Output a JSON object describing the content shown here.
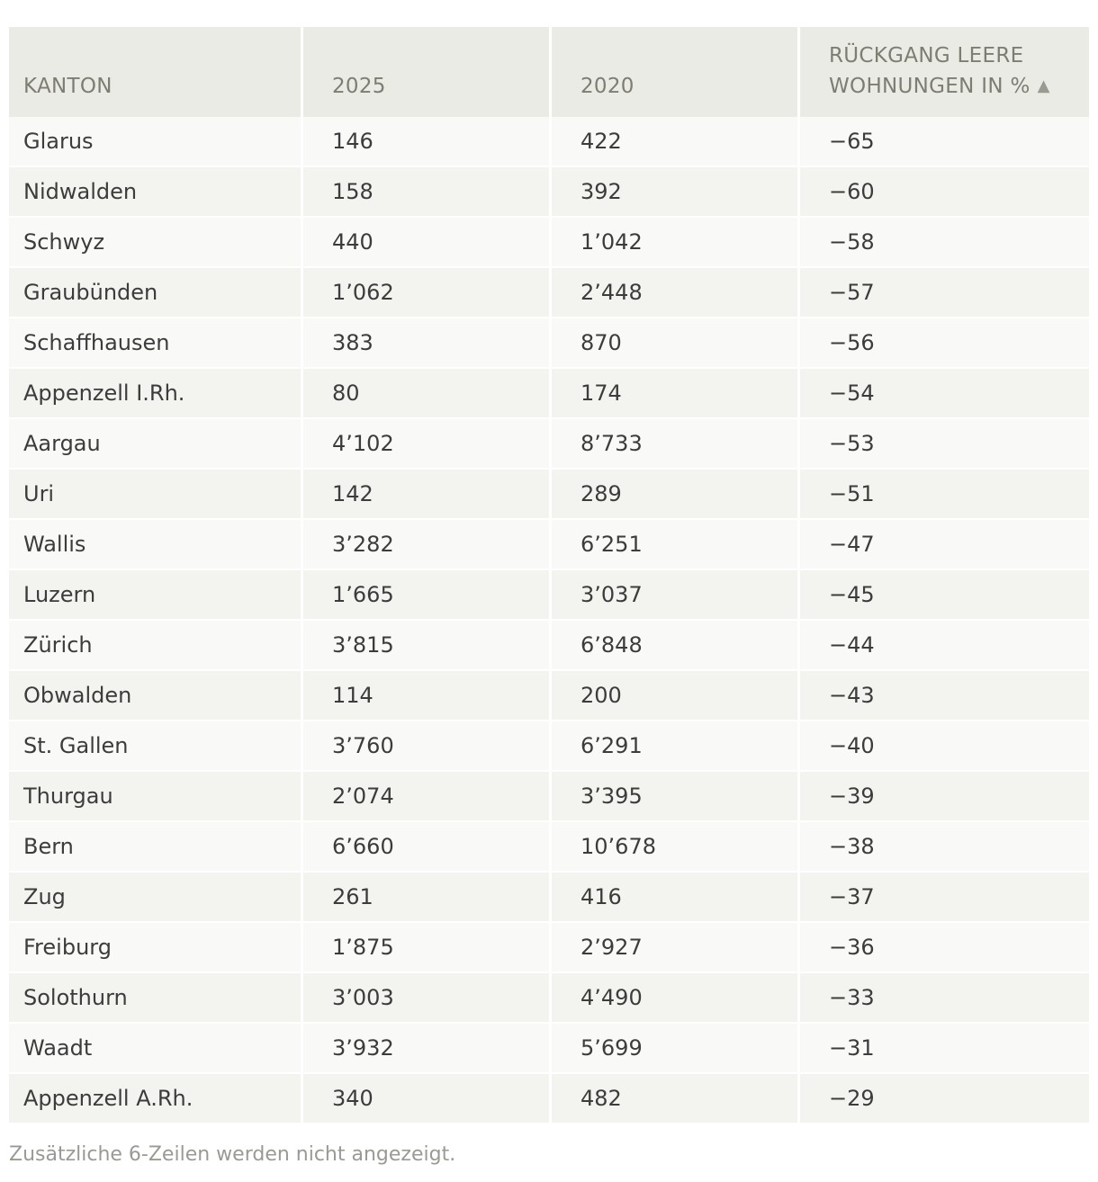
{
  "table": {
    "headers": {
      "kanton": "KANTON",
      "y2025": "2025",
      "y2020": "2020",
      "change_line1": "RÜCKGANG LEERE",
      "change_line2": "WOHNUNGEN IN %",
      "sort_indicator": "▲",
      "sort_icon": "sort-ascending-icon"
    },
    "rows": [
      {
        "kanton": "Glarus",
        "y2025": "146",
        "y2020": "422",
        "change": "−65"
      },
      {
        "kanton": "Nidwalden",
        "y2025": "158",
        "y2020": "392",
        "change": "−60"
      },
      {
        "kanton": "Schwyz",
        "y2025": "440",
        "y2020": "1’042",
        "change": "−58"
      },
      {
        "kanton": "Graubünden",
        "y2025": "1’062",
        "y2020": "2’448",
        "change": "−57"
      },
      {
        "kanton": "Schaffhausen",
        "y2025": "383",
        "y2020": "870",
        "change": "−56"
      },
      {
        "kanton": "Appenzell I.Rh.",
        "y2025": "80",
        "y2020": "174",
        "change": "−54"
      },
      {
        "kanton": "Aargau",
        "y2025": "4’102",
        "y2020": "8’733",
        "change": "−53"
      },
      {
        "kanton": "Uri",
        "y2025": "142",
        "y2020": "289",
        "change": "−51"
      },
      {
        "kanton": "Wallis",
        "y2025": "3’282",
        "y2020": "6’251",
        "change": "−47"
      },
      {
        "kanton": "Luzern",
        "y2025": "1’665",
        "y2020": "3’037",
        "change": "−45"
      },
      {
        "kanton": "Zürich",
        "y2025": "3’815",
        "y2020": "6’848",
        "change": "−44"
      },
      {
        "kanton": "Obwalden",
        "y2025": "114",
        "y2020": "200",
        "change": "−43"
      },
      {
        "kanton": "St. Gallen",
        "y2025": "3’760",
        "y2020": "6’291",
        "change": "−40"
      },
      {
        "kanton": "Thurgau",
        "y2025": "2’074",
        "y2020": "3’395",
        "change": "−39"
      },
      {
        "kanton": "Bern",
        "y2025": "6’660",
        "y2020": "10’678",
        "change": "−38"
      },
      {
        "kanton": "Zug",
        "y2025": "261",
        "y2020": "416",
        "change": "−37"
      },
      {
        "kanton": "Freiburg",
        "y2025": "1’875",
        "y2020": "2’927",
        "change": "−36"
      },
      {
        "kanton": "Solothurn",
        "y2025": "3’003",
        "y2020": "4’490",
        "change": "−33"
      },
      {
        "kanton": "Waadt",
        "y2025": "3’932",
        "y2020": "5’699",
        "change": "−31"
      },
      {
        "kanton": "Appenzell A.Rh.",
        "y2025": "340",
        "y2020": "482",
        "change": "−29"
      }
    ]
  },
  "footnote": "Zusätzliche 6-Zeilen werden nicht angezeigt."
}
